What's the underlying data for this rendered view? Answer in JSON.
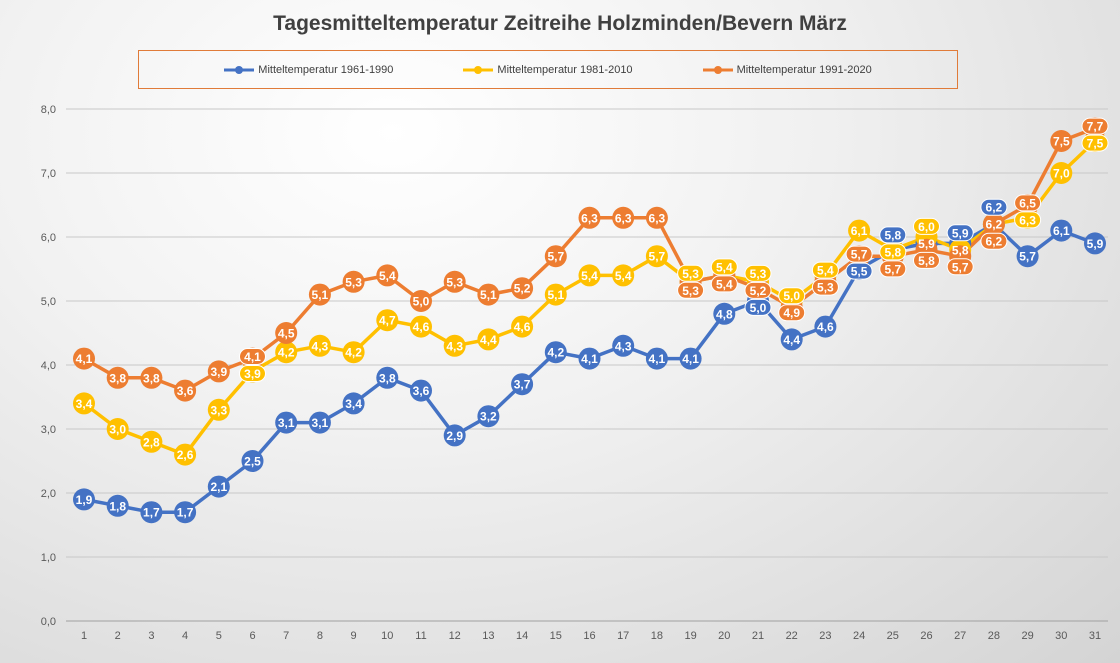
{
  "chart_data": {
    "type": "line",
    "title": "Tagesmitteltemperatur Zeitreihe Holzminden/Bevern März",
    "xlabel": "",
    "ylabel": "",
    "ylim": [
      0,
      8
    ],
    "yticks": [
      "0,0",
      "1,0",
      "2,0",
      "3,0",
      "4,0",
      "5,0",
      "6,0",
      "7,0",
      "8,0"
    ],
    "grid": true,
    "legend_placement": "top",
    "data_labels": true,
    "x": [
      1,
      2,
      3,
      4,
      5,
      6,
      7,
      8,
      9,
      10,
      11,
      12,
      13,
      14,
      15,
      16,
      17,
      18,
      19,
      20,
      21,
      22,
      23,
      24,
      25,
      26,
      27,
      28,
      29,
      30,
      31
    ],
    "series": [
      {
        "name": "Mitteltemperatur 1961-1990",
        "color": "#4472c4",
        "values": [
          1.9,
          1.8,
          1.7,
          1.7,
          2.1,
          2.5,
          3.1,
          3.1,
          3.4,
          3.8,
          3.6,
          2.9,
          3.2,
          3.7,
          4.2,
          4.1,
          4.3,
          4.1,
          4.1,
          4.8,
          5.0,
          4.4,
          4.6,
          5.5,
          5.8,
          5.9,
          5.9,
          6.2,
          5.7,
          6.1,
          5.9
        ]
      },
      {
        "name": "Mitteltemperatur 1981-2010",
        "color": "#ffc000",
        "values": [
          3.4,
          3.0,
          2.8,
          2.6,
          3.3,
          3.9,
          4.2,
          4.3,
          4.2,
          4.7,
          4.6,
          4.3,
          4.4,
          4.6,
          5.1,
          5.4,
          5.4,
          5.7,
          5.3,
          5.4,
          5.3,
          5.0,
          5.4,
          6.1,
          5.8,
          6.0,
          5.8,
          6.2,
          6.3,
          7.0,
          7.5
        ]
      },
      {
        "name": "Mitteltemperatur 1991-2020",
        "color": "#ed7d31",
        "values": [
          4.1,
          3.8,
          3.8,
          3.6,
          3.9,
          4.1,
          4.5,
          5.1,
          5.3,
          5.4,
          5.0,
          5.3,
          5.1,
          5.2,
          5.7,
          6.3,
          6.3,
          6.3,
          5.3,
          5.4,
          5.2,
          4.9,
          5.3,
          5.7,
          5.7,
          5.8,
          5.7,
          6.2,
          6.5,
          7.5,
          7.7
        ]
      }
    ]
  }
}
